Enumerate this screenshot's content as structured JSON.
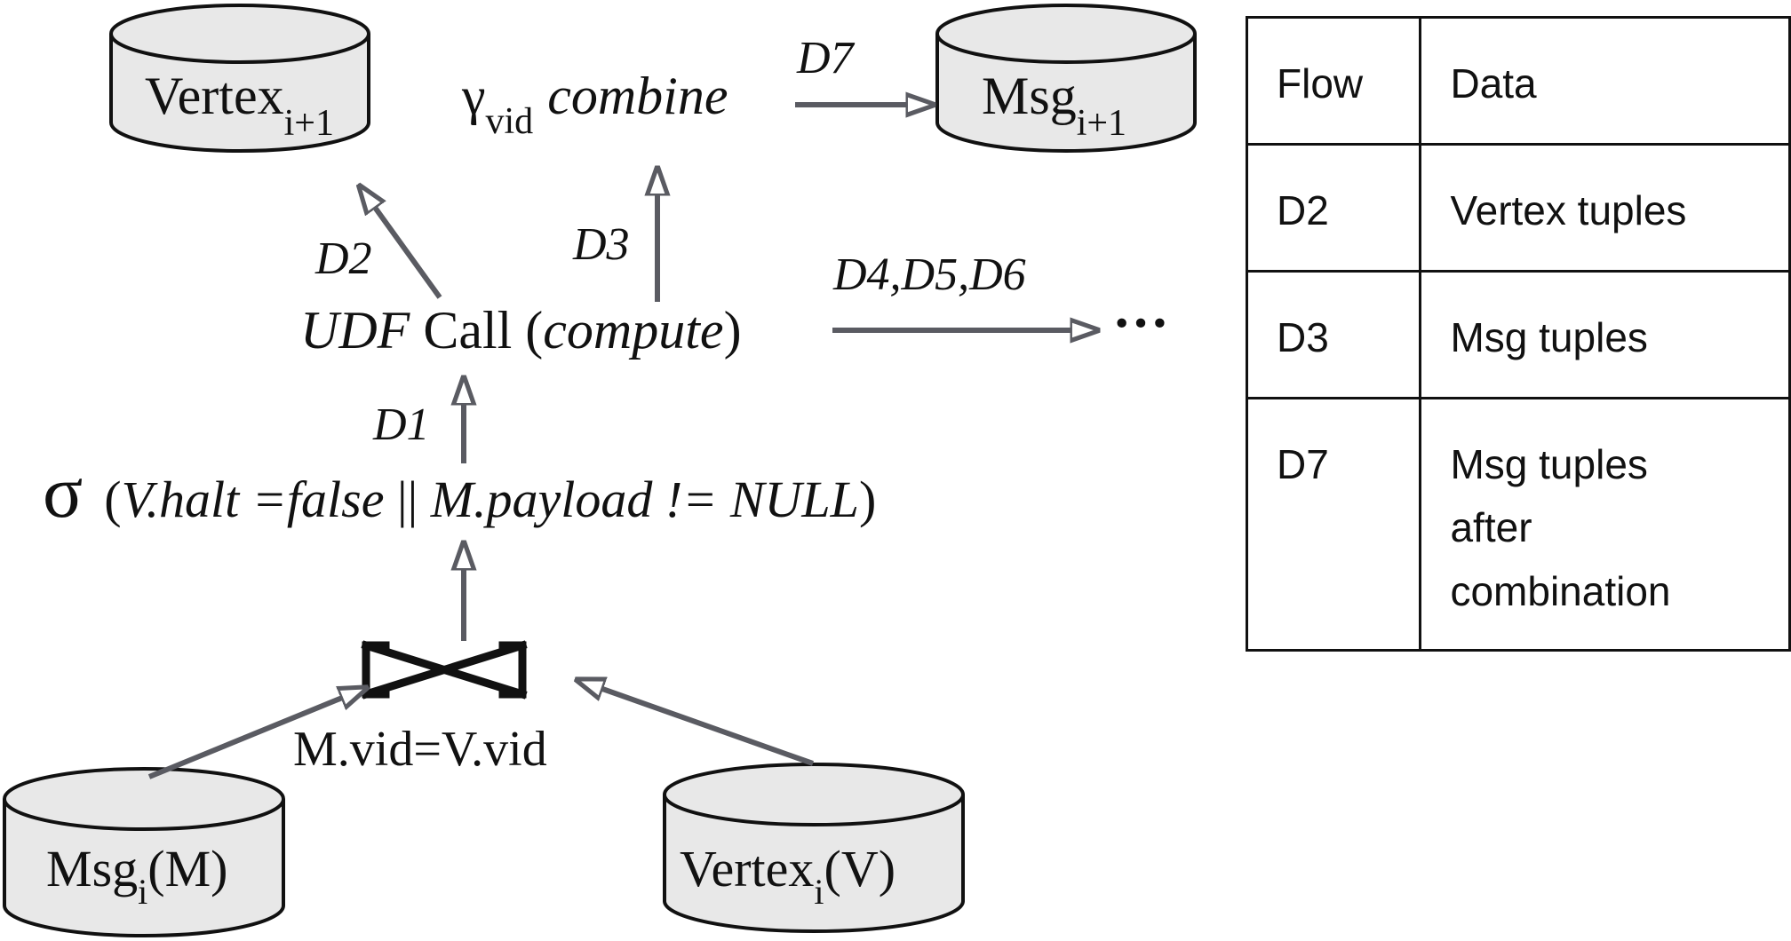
{
  "nodes": {
    "vertex_next": {
      "base": "Vertex",
      "sub": "i+1"
    },
    "msg_next": {
      "base": "Msg",
      "sub": "i+1"
    },
    "msg_cur": {
      "base": "Msg",
      "sub": "i",
      "suffix": "(M)"
    },
    "vertex_cur": {
      "base": "Vertex",
      "sub": "i",
      "suffix": "(V)"
    }
  },
  "operators": {
    "combine": {
      "symbol": "γ",
      "sub": "vid",
      "label": "combine"
    },
    "udf": {
      "prefix": "UDF",
      "middle": " Call (",
      "fn": "compute",
      "suffix": ")"
    },
    "select": {
      "symbol": "σ",
      "open": "(",
      "cond": "V.halt =false",
      "op": " || ",
      "cond2": "M.payload != NULL",
      "close": ")"
    },
    "join": {
      "condition": "M.vid=V.vid"
    },
    "continuation": "···"
  },
  "edges": {
    "d1": "D1",
    "d2": "D2",
    "d3": "D3",
    "d456": "D4,D5,D6",
    "d7": "D7"
  },
  "legend": {
    "header": {
      "flow": "Flow",
      "data": "Data"
    },
    "rows": [
      {
        "flow": "D2",
        "lines": [
          "Vertex tuples"
        ]
      },
      {
        "flow": "D3",
        "lines": [
          "Msg tuples"
        ]
      },
      {
        "flow": "D7",
        "lines": [
          "Msg tuples",
          "after",
          "combination"
        ]
      }
    ]
  },
  "colors": {
    "arrow": "#5a5b62",
    "cylinder_fill": "#e8e8e8",
    "stroke": "#111111"
  }
}
